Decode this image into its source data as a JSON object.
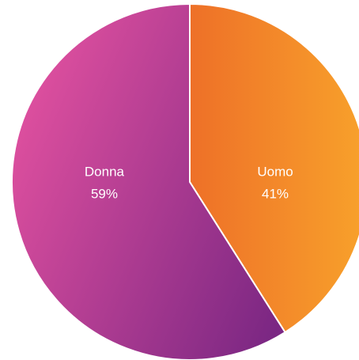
{
  "chart_data": {
    "type": "pie",
    "categories": [
      "Uomo",
      "Donna"
    ],
    "values": [
      41,
      59
    ],
    "value_labels": [
      "41%",
      "59%"
    ],
    "colors": [
      [
        "#ee7028",
        "#f8a22b"
      ],
      [
        "#e0509f",
        "#7b2783"
      ]
    ]
  }
}
